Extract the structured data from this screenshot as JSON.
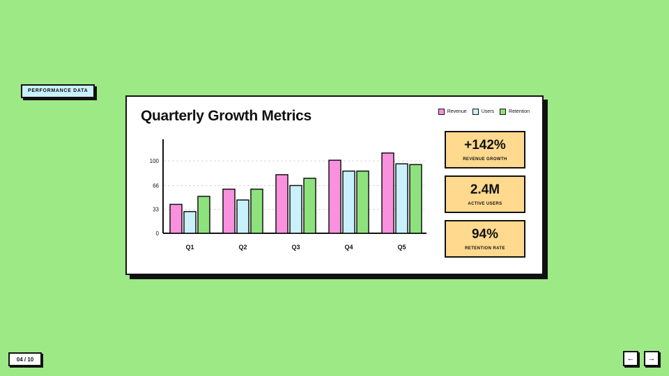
{
  "section_tag": "PERFORMANCE DATA",
  "title": "Quarterly Growth Metrics",
  "legend": [
    "Revenue",
    "Users",
    "Retention"
  ],
  "colors": {
    "revenue": "#f991df",
    "users": "#c9f1fb",
    "retention": "#8de27d",
    "stat_bg": "#ffd98e",
    "background": "#9de986"
  },
  "chart_data": {
    "type": "bar",
    "categories": [
      "Q1",
      "Q2",
      "Q3",
      "Q4",
      "Q5"
    ],
    "series": [
      {
        "name": "Revenue",
        "values": [
          40,
          61,
          81,
          101,
          111
        ]
      },
      {
        "name": "Users",
        "values": [
          30,
          46,
          66,
          86,
          96
        ]
      },
      {
        "name": "Retention",
        "values": [
          51,
          61,
          76,
          86,
          95
        ]
      }
    ],
    "yticks": [
      0,
      33,
      66,
      100
    ],
    "ylim": [
      0,
      130
    ],
    "grid": true,
    "legend_position": "top-right"
  },
  "stats": [
    {
      "value": "+142%",
      "label": "REVENUE GROWTH"
    },
    {
      "value": "2.4M",
      "label": "ACTIVE USERS"
    },
    {
      "value": "94%",
      "label": "RETENTION RATE"
    }
  ],
  "pagination": {
    "counter": "04 / 10",
    "prev": "←",
    "next": "→"
  }
}
